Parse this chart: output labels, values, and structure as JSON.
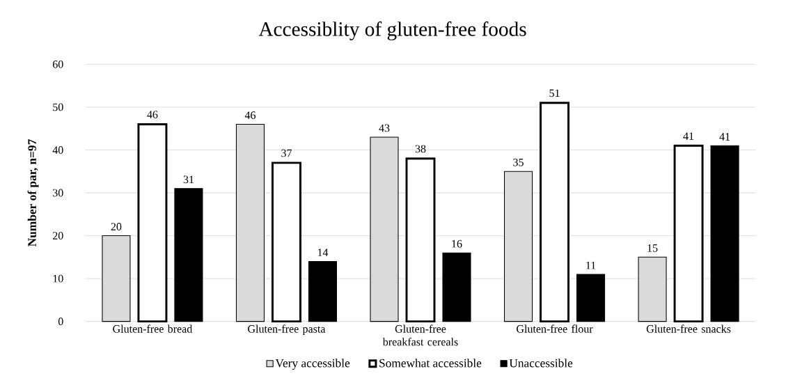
{
  "chart_data": {
    "type": "bar",
    "title": "Accessiblity of gluten-free foods",
    "ylabel": "Number of par, n=97",
    "categories": [
      "Gluten-free bread",
      "Gluten-free pasta",
      "Gluten-free breakfast cereals",
      "Gluten-free flour",
      "Gluten-free snacks"
    ],
    "series": [
      {
        "name": "Very accessible",
        "color": "#dadada",
        "values": [
          20,
          46,
          43,
          35,
          15
        ]
      },
      {
        "name": "Somewhat accessible",
        "color": "#ffffff",
        "values": [
          46,
          37,
          38,
          51,
          41
        ]
      },
      {
        "name": "Unaccessible",
        "color": "#000000",
        "values": [
          31,
          14,
          16,
          11,
          41
        ]
      }
    ],
    "ylim": [
      0,
      60
    ],
    "yticks": [
      0,
      10,
      20,
      30,
      40,
      50,
      60
    ],
    "grid": "y",
    "legend": "bottom",
    "data_labels": true
  }
}
